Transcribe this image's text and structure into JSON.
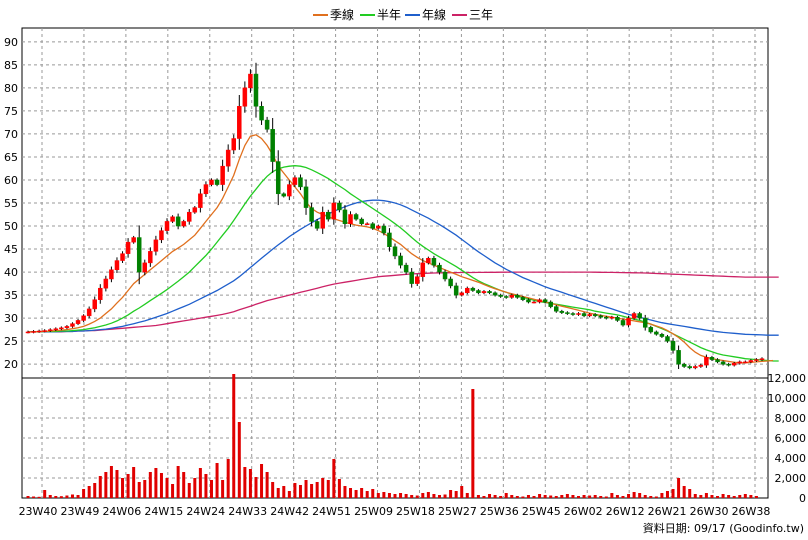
{
  "chart_data": {
    "type": "candlestick",
    "legend": [
      {
        "label": "季線",
        "color": "#e0701e"
      },
      {
        "label": "半年",
        "color": "#22cc22"
      },
      {
        "label": "年線",
        "color": "#1f5fcc"
      },
      {
        "label": "三年",
        "color": "#cc2266"
      }
    ],
    "price_axis": {
      "ylim": [
        17,
        93
      ],
      "ticks": [
        20,
        25,
        30,
        35,
        40,
        45,
        50,
        55,
        60,
        65,
        70,
        75,
        80,
        85,
        90
      ]
    },
    "volume_axis": {
      "ylim": [
        0,
        12000
      ],
      "ticks": [
        0,
        2000,
        4000,
        6000,
        8000,
        10000,
        12000
      ],
      "tick_labels": [
        "0",
        "2,000",
        "4,000",
        "6,000",
        "8,000",
        "10,000",
        "12,000"
      ]
    },
    "x_tick_labels": [
      "23W40",
      "23W49",
      "24W06",
      "24W15",
      "24W24",
      "24W33",
      "24W42",
      "24W51",
      "25W09",
      "25W18",
      "25W27",
      "25W36",
      "25W45",
      "26W02",
      "26W12",
      "26W21",
      "26W30",
      "26W38"
    ],
    "grid": true,
    "footer": "資料日期: 09/17  (Goodinfo.tw)",
    "candle_colors": {
      "up": "#ff0000",
      "down": "#008000"
    },
    "close_series": [
      27,
      27.1,
      27.2,
      27.3,
      27.5,
      27.7,
      27.9,
      28.2,
      28.8,
      29.5,
      30.5,
      32,
      34,
      36.5,
      38.5,
      40.5,
      42.5,
      44,
      46.5,
      47.5,
      40,
      42,
      44.5,
      47,
      49,
      51,
      52,
      50,
      51,
      53,
      54,
      57,
      59,
      60,
      59,
      63,
      66.5,
      69,
      76,
      80,
      83,
      76,
      73,
      71,
      64,
      57,
      56.5,
      59,
      60.5,
      58.5,
      54,
      51,
      49.5,
      53,
      51.5,
      55,
      53.5,
      50.5,
      52.5,
      51.5,
      50.5,
      50.5,
      49.5,
      50,
      48.5,
      45.5,
      43.5,
      41.5,
      40,
      37.5,
      39,
      42,
      43,
      41.5,
      40,
      38.5,
      37,
      35,
      35.5,
      36.5,
      36,
      35.5,
      35.8,
      35.5,
      35,
      34.7,
      34.5,
      35,
      34.5,
      34,
      33.5,
      33.5,
      34,
      33.5,
      32.5,
      31.5,
      31.2,
      31,
      30.8,
      31,
      30.5,
      30.8,
      30.5,
      30.2,
      30,
      30.2,
      29.5,
      28.5,
      30,
      31,
      30,
      28,
      27,
      26.5,
      26,
      25,
      23,
      20,
      19.5,
      19.2,
      19.5,
      19.8,
      21.5,
      21,
      20.5,
      20,
      19.8,
      20.2,
      20.5,
      20.5,
      20.8,
      21,
      21.2
    ],
    "volume_series": [
      200,
      150,
      120,
      800,
      300,
      200,
      180,
      250,
      350,
      300,
      900,
      1200,
      1500,
      2200,
      2600,
      3200,
      2800,
      2000,
      2400,
      3100,
      1600,
      1800,
      2600,
      3000,
      2500,
      2000,
      1400,
      3200,
      2600,
      1500,
      2000,
      3000,
      2400,
      1800,
      3500,
      1800,
      3900,
      12400,
      7600,
      3100,
      2900,
      2100,
      3400,
      2600,
      1600,
      1000,
      1200,
      700,
      1500,
      1300,
      1800,
      1400,
      1600,
      2000,
      1800,
      3900,
      1900,
      1200,
      1000,
      800,
      1000,
      700,
      900,
      500,
      600,
      500,
      400,
      500,
      400,
      300,
      250,
      500,
      600,
      400,
      300,
      350,
      800,
      700,
      1200,
      500,
      10900,
      300,
      200,
      400,
      300,
      200,
      500,
      300,
      200,
      150,
      300,
      200,
      400,
      300,
      250,
      200,
      300,
      400,
      300,
      200,
      300,
      250,
      300,
      200,
      150,
      500,
      300,
      200,
      400,
      600,
      500,
      300,
      200,
      150,
      500,
      700,
      900,
      2000,
      1200,
      900,
      400,
      300,
      500,
      300,
      200,
      400,
      300,
      200,
      300,
      400,
      300,
      200
    ],
    "ma_quarter": [
      27,
      27,
      27.1,
      27.1,
      27.2,
      27.3,
      27.4,
      27.5,
      27.7,
      27.9,
      28.2,
      28.7,
      29.3,
      30,
      31,
      32,
      33.3,
      34.5,
      36,
      37.5,
      38.5,
      39.5,
      40.5,
      41.5,
      42.5,
      43.5,
      44.5,
      45.2,
      46,
      47,
      48,
      49.5,
      51,
      52.5,
      54,
      56,
      58.5,
      61,
      64.5,
      67.5,
      69.5,
      69.8,
      69,
      67.5,
      65.5,
      63,
      61.5,
      60,
      58.5,
      57,
      55.2,
      53.8,
      53,
      52.5,
      52,
      51.6,
      51.2,
      50.8,
      50.5,
      50.2,
      50,
      49.8,
      49.5,
      49,
      48.4,
      47.6,
      46.8,
      46,
      45,
      44,
      43.2,
      42.5,
      42,
      41.5,
      41,
      40.5,
      40,
      39.5,
      39,
      38.6,
      38.2,
      37.8,
      37.3,
      36.8,
      36.4,
      36,
      35.6,
      35.3,
      35,
      34.7,
      34.4,
      34.1,
      33.8,
      33.5,
      33.2,
      32.9,
      32.6,
      32.3,
      32,
      31.7,
      31.4,
      31.1,
      30.8,
      30.6,
      30.4,
      30.2,
      30,
      29.8,
      29.6,
      29.4,
      29.2,
      29,
      28.7,
      28.3,
      27.9,
      27.3,
      26.6,
      25.8,
      24.8,
      23.6,
      22.6,
      21.9,
      21.5,
      21.2,
      21,
      20.8,
      20.6,
      20.4,
      20.3,
      20.3,
      20.4,
      20.5,
      20.6,
      20.7,
      20.8
    ],
    "ma_half": [
      27,
      27,
      27,
      27.1,
      27.1,
      27.1,
      27.2,
      27.2,
      27.3,
      27.4,
      27.5,
      27.7,
      27.9,
      28.2,
      28.5,
      28.9,
      29.4,
      30,
      30.7,
      31.5,
      32.2,
      33,
      33.8,
      34.6,
      35.4,
      36.2,
      37.1,
      38,
      39,
      40,
      41.2,
      42.4,
      43.6,
      45,
      46.5,
      48,
      49.5,
      51.2,
      53,
      54.8,
      56.5,
      58,
      59.5,
      60.8,
      61.8,
      62.4,
      62.8,
      63,
      63.1,
      63,
      62.7,
      62.2,
      61.6,
      61,
      60.3,
      59.5,
      58.7,
      57.9,
      57,
      56.2,
      55.4,
      54.6,
      53.8,
      53,
      52.2,
      51.4,
      50.5,
      49.6,
      48.6,
      47.5,
      46.5,
      45.6,
      44.8,
      44,
      43.3,
      42.6,
      41.9,
      41.2,
      40.4,
      39.6,
      38.8,
      38.1,
      37.5,
      37,
      36.5,
      36,
      35.6,
      35.2,
      34.8,
      34.5,
      34.2,
      33.9,
      33.6,
      33.4,
      33.2,
      33,
      32.8,
      32.6,
      32.4,
      32.2,
      32,
      31.8,
      31.5,
      31.3,
      31.1,
      30.9,
      30.7,
      30.4,
      30.1,
      29.8,
      29.5,
      29.1,
      28.7,
      28.2,
      27.7,
      27.2,
      26.6,
      26,
      25.4,
      24.8,
      24.2,
      23.6,
      23.1,
      22.7,
      22.3,
      22,
      21.8,
      21.6,
      21.4,
      21.2,
      21.1,
      21,
      20.9,
      20.8,
      20.7,
      20.7
    ],
    "ma_year": [
      27,
      27,
      27,
      27,
      27,
      27,
      27.1,
      27.1,
      27.1,
      27.2,
      27.2,
      27.3,
      27.4,
      27.5,
      27.6,
      27.8,
      28,
      28.2,
      28.5,
      28.8,
      29.1,
      29.4,
      29.8,
      30.2,
      30.6,
      31,
      31.5,
      32,
      32.5,
      33,
      33.6,
      34.2,
      34.8,
      35.4,
      36,
      36.7,
      37.4,
      38.1,
      39,
      40,
      41,
      42,
      43,
      44,
      45,
      45.9,
      46.8,
      47.7,
      48.5,
      49.3,
      50,
      50.7,
      51.4,
      52,
      52.6,
      53.2,
      53.7,
      54.2,
      54.6,
      55,
      55.3,
      55.5,
      55.6,
      55.6,
      55.5,
      55.3,
      55,
      54.6,
      54.1,
      53.5,
      52.9,
      52.3,
      51.7,
      51,
      50.3,
      49.6,
      48.8,
      48,
      47.1,
      46.2,
      45.3,
      44.4,
      43.6,
      42.8,
      42,
      41.3,
      40.6,
      40,
      39.4,
      38.8,
      38.3,
      37.8,
      37.3,
      36.8,
      36.4,
      36,
      35.6,
      35.2,
      34.8,
      34.4,
      34,
      33.6,
      33.2,
      32.8,
      32.4,
      32,
      31.6,
      31.2,
      30.8,
      30.5,
      30.2,
      29.9,
      29.6,
      29.3,
      29,
      28.8,
      28.6,
      28.4,
      28.2,
      28,
      27.8,
      27.6,
      27.4,
      27.2,
      27.05,
      26.9,
      26.8,
      26.7,
      26.6,
      26.5,
      26.45,
      26.4,
      26.35,
      26.3,
      26.3,
      26.3
    ],
    "ma_3year": [
      27,
      27,
      27,
      27,
      27,
      27,
      27,
      27.1,
      27.1,
      27.2,
      27.2,
      27.3,
      27.3,
      27.4,
      27.5,
      27.6,
      27.7,
      27.8,
      27.9,
      28,
      28.1,
      28.2,
      28.3,
      28.4,
      28.6,
      28.8,
      29,
      29.2,
      29.4,
      29.6,
      29.8,
      30,
      30.2,
      30.4,
      30.6,
      30.8,
      31.1,
      31.4,
      31.8,
      32.2,
      32.6,
      33,
      33.4,
      33.8,
      34.1,
      34.4,
      34.7,
      35,
      35.3,
      35.6,
      35.9,
      36.2,
      36.5,
      36.8,
      37.1,
      37.4,
      37.6,
      37.8,
      38,
      38.2,
      38.4,
      38.6,
      38.8,
      39,
      39.1,
      39.2,
      39.3,
      39.4,
      39.5,
      39.6,
      39.65,
      39.7,
      39.75,
      39.8,
      39.82,
      39.84,
      39.86,
      39.88,
      39.9,
      39.9,
      39.9,
      39.92,
      39.94,
      39.95,
      39.96,
      39.97,
      39.98,
      39.99,
      40,
      40,
      40,
      40,
      40,
      40,
      40,
      40,
      40,
      40,
      40,
      40,
      40,
      40,
      39.98,
      39.96,
      39.94,
      39.92,
      39.9,
      39.88,
      39.86,
      39.84,
      39.82,
      39.8,
      39.75,
      39.7,
      39.65,
      39.6,
      39.55,
      39.5,
      39.45,
      39.4,
      39.35,
      39.3,
      39.25,
      39.2,
      39.15,
      39.1,
      39.05,
      39,
      38.95,
      38.9,
      38.9,
      38.9,
      38.9,
      38.9,
      38.9,
      38.9
    ]
  }
}
